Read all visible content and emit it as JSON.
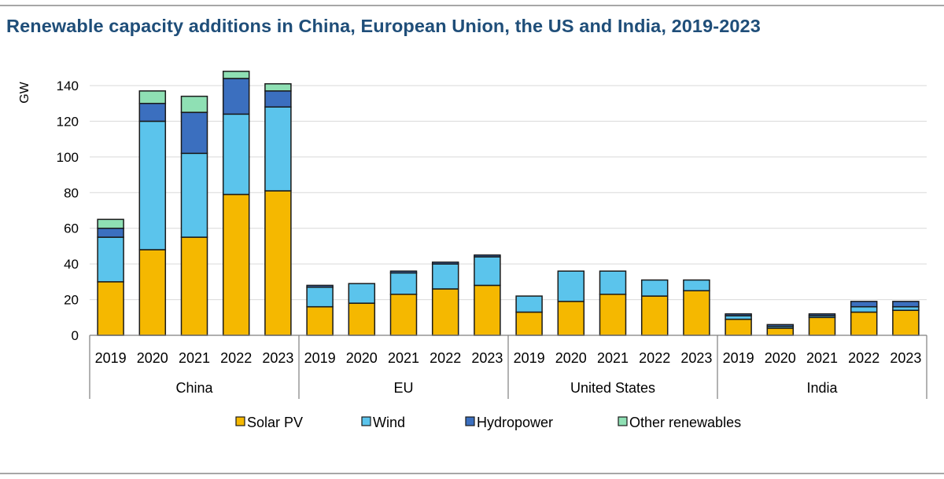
{
  "chart_data": {
    "type": "bar",
    "stacked": true,
    "title": "Renewable capacity additions in China, European Union, the US and India, 2019-2023",
    "ylabel": "GW",
    "ylim": [
      0,
      140
    ],
    "yticks": [
      0,
      20,
      40,
      60,
      80,
      100,
      120,
      140
    ],
    "grid": true,
    "legend_position": "bottom",
    "groups": [
      {
        "name": "China",
        "years": [
          "2019",
          "2020",
          "2021",
          "2022",
          "2023"
        ]
      },
      {
        "name": "EU",
        "years": [
          "2019",
          "2020",
          "2021",
          "2022",
          "2023"
        ]
      },
      {
        "name": "United States",
        "years": [
          "2019",
          "2020",
          "2021",
          "2022",
          "2023"
        ]
      },
      {
        "name": "India",
        "years": [
          "2019",
          "2020",
          "2021",
          "2022",
          "2023"
        ]
      }
    ],
    "series": [
      {
        "name": "Solar PV",
        "color": "#f5b800",
        "values": [
          30,
          48,
          55,
          79,
          81,
          16,
          18,
          23,
          26,
          28,
          13,
          19,
          23,
          22,
          25,
          9,
          4,
          10,
          13,
          14
        ]
      },
      {
        "name": "Wind",
        "color": "#5bc4ec",
        "values": [
          25,
          72,
          47,
          45,
          47,
          11,
          11,
          12,
          14,
          16,
          9,
          17,
          13,
          9,
          6,
          2,
          1,
          1,
          3,
          2
        ]
      },
      {
        "name": "Hydropower",
        "color": "#3b6fbf",
        "values": [
          5,
          10,
          23,
          20,
          9,
          1,
          0,
          1,
          1,
          1,
          0,
          0,
          0,
          0,
          0,
          1,
          1,
          1,
          3,
          3
        ]
      },
      {
        "name": "Other renewables",
        "color": "#8fe0b4",
        "values": [
          5,
          7,
          9,
          4,
          4,
          0,
          0,
          0,
          0,
          0,
          0,
          0,
          0,
          0,
          0,
          0,
          0,
          0,
          0,
          0
        ]
      }
    ]
  }
}
